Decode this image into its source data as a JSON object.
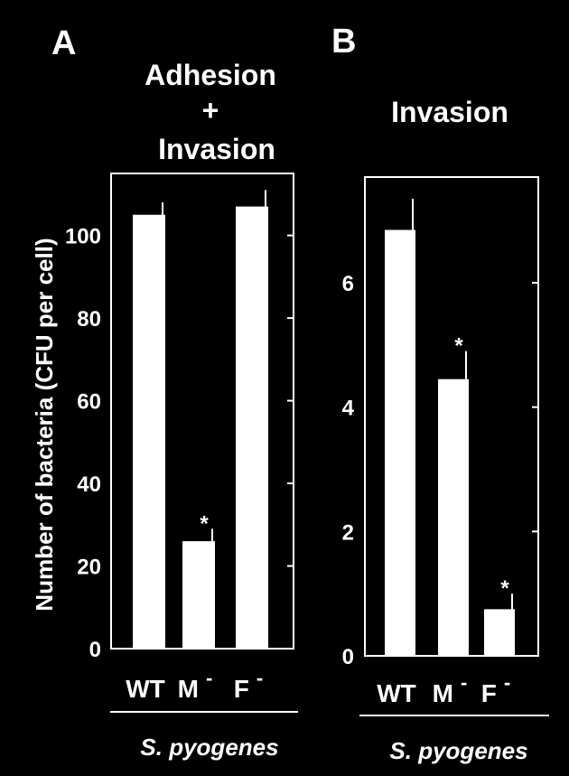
{
  "colors": {
    "background": "#000000",
    "foreground": "#ffffff"
  },
  "chart_data": [
    {
      "panel": "A",
      "type": "bar",
      "title_lines": [
        "Adhesion",
        "+",
        "Invasion"
      ],
      "ylabel": "Number of bacteria (CFU per cell)",
      "xlabel": "S. pyogenes",
      "ylim": [
        0,
        115
      ],
      "yticks": [
        0,
        20,
        40,
        60,
        80,
        100
      ],
      "categories": [
        {
          "base": "WT",
          "sup": ""
        },
        {
          "base": "M",
          "sup": "-"
        },
        {
          "base": "F",
          "sup": "-"
        }
      ],
      "values": [
        105,
        26,
        107
      ],
      "error_upper": [
        108,
        29,
        111
      ],
      "significance": [
        "",
        "*",
        ""
      ]
    },
    {
      "panel": "B",
      "type": "bar",
      "title_lines": [
        "Invasion"
      ],
      "ylabel": "",
      "xlabel": "S. pyogenes",
      "ylim": [
        0,
        7.7
      ],
      "yticks": [
        0,
        2,
        4,
        6
      ],
      "categories": [
        {
          "base": "WT",
          "sup": ""
        },
        {
          "base": "M",
          "sup": "-"
        },
        {
          "base": "F",
          "sup": "-"
        }
      ],
      "values": [
        6.85,
        4.45,
        0.75
      ],
      "error_upper": [
        7.35,
        4.9,
        1.0
      ],
      "significance": [
        "",
        "*",
        "*"
      ]
    }
  ]
}
